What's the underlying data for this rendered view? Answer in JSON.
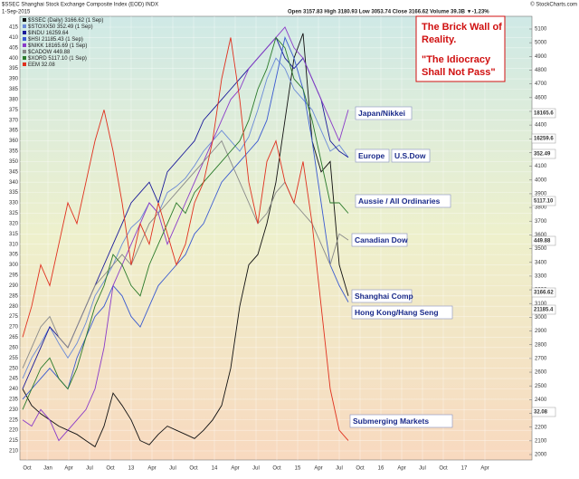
{
  "chart_data": {
    "type": "line",
    "title": "$SSEC Shanghai Stock Exchange Composite Index (EOD) INDX",
    "date": "1-Sep-2015",
    "quote": "Open 3157.83  High 3180.93  Low 3053.74  Close 3166.62  Volume 39.3B  ▼-1.23%",
    "source": "© StockCharts.com",
    "legend": [
      "$SSEC (Daily) 3166.62 (1 Sep)",
      "$STOXX50 352.49 (1 Sep)",
      "$INDU 16259.64",
      "$HSI 21185.43 (1 Sep)",
      "$NIKK 18165.69 (1 Sep)",
      "$CADOW 449.88",
      "$XORD 5117.10 (1 Sep)",
      "EEM 32.08"
    ],
    "series": [
      {
        "name": "$SSEC",
        "color": "#111111",
        "values": [
          240,
          232,
          228,
          225,
          222,
          220,
          218,
          215,
          212,
          222,
          238,
          232,
          225,
          215,
          213,
          218,
          222,
          220,
          218,
          216,
          220,
          225,
          232,
          250,
          280,
          300,
          305,
          320,
          340,
          370,
          400,
          412,
          360,
          345,
          350,
          300,
          285
        ]
      },
      {
        "name": "$STOXX50",
        "color": "#6a8ad8",
        "values": [
          245,
          255,
          262,
          270,
          262,
          255,
          262,
          272,
          285,
          292,
          300,
          310,
          318,
          322,
          330,
          325,
          335,
          338,
          342,
          348,
          355,
          360,
          365,
          360,
          355,
          362,
          375,
          390,
          400,
          395,
          385,
          380,
          375,
          365,
          355,
          358,
          352
        ]
      },
      {
        "name": "$INDU",
        "color": "#1a1a9a",
        "values": [
          240,
          250,
          260,
          270,
          265,
          260,
          270,
          280,
          290,
          300,
          310,
          320,
          330,
          335,
          340,
          330,
          345,
          350,
          355,
          360,
          370,
          375,
          380,
          385,
          390,
          395,
          400,
          405,
          410,
          400,
          395,
          400,
          390,
          380,
          360,
          355,
          352
        ]
      },
      {
        "name": "$HSI",
        "color": "#3a5ad0",
        "values": [
          235,
          240,
          245,
          250,
          245,
          240,
          255,
          265,
          275,
          280,
          290,
          285,
          275,
          270,
          280,
          290,
          295,
          300,
          305,
          315,
          320,
          330,
          340,
          345,
          350,
          355,
          360,
          370,
          390,
          410,
          400,
          385,
          360,
          330,
          300,
          290,
          282
        ]
      },
      {
        "name": "$NIKK",
        "color": "#8a3ac8",
        "values": [
          225,
          222,
          230,
          225,
          215,
          220,
          225,
          230,
          240,
          260,
          290,
          300,
          310,
          320,
          330,
          325,
          310,
          320,
          330,
          340,
          350,
          360,
          370,
          380,
          385,
          395,
          400,
          405,
          410,
          415,
          405,
          400,
          390,
          380,
          370,
          360,
          375
        ]
      },
      {
        "name": "$CADOW",
        "color": "#888888",
        "values": [
          250,
          260,
          270,
          275,
          265,
          260,
          270,
          280,
          290,
          295,
          300,
          305,
          300,
          310,
          320,
          325,
          330,
          335,
          340,
          345,
          350,
          355,
          360,
          350,
          340,
          330,
          320,
          325,
          335,
          340,
          330,
          325,
          320,
          310,
          300,
          315,
          312
        ]
      },
      {
        "name": "$XORD",
        "color": "#2a7a2a",
        "values": [
          230,
          240,
          250,
          255,
          245,
          240,
          250,
          265,
          280,
          290,
          305,
          300,
          290,
          285,
          300,
          310,
          320,
          330,
          325,
          335,
          340,
          345,
          350,
          355,
          360,
          370,
          385,
          395,
          410,
          405,
          390,
          385,
          370,
          350,
          330,
          330,
          325
        ]
      },
      {
        "name": "EEM",
        "color": "#e0301e",
        "values": [
          265,
          280,
          300,
          290,
          310,
          330,
          320,
          340,
          360,
          375,
          355,
          330,
          300,
          320,
          310,
          330,
          315,
          300,
          310,
          330,
          340,
          360,
          390,
          410,
          380,
          340,
          320,
          350,
          360,
          340,
          330,
          350,
          320,
          280,
          240,
          220,
          215
        ]
      }
    ],
    "x_labels": [
      "Oct",
      "Jan",
      "Apr",
      "Jul",
      "Oct",
      "13",
      "Apr",
      "Jul",
      "Oct",
      "14",
      "Apr",
      "Jul",
      "Oct",
      "15",
      "Apr",
      "Jul",
      "Oct",
      "16",
      "Apr",
      "Jul",
      "Oct",
      "17",
      "Apr"
    ],
    "ylim": [
      205,
      418
    ],
    "yticks": [
      210,
      215,
      220,
      225,
      230,
      235,
      240,
      245,
      250,
      255,
      260,
      265,
      270,
      275,
      280,
      285,
      290,
      295,
      300,
      305,
      310,
      315,
      320,
      325,
      330,
      335,
      340,
      345,
      350,
      355,
      360,
      365,
      370,
      375,
      380,
      385,
      390,
      395,
      400,
      405,
      410,
      415
    ],
    "y2lim": [
      2000,
      5100
    ],
    "y2ticks": [
      2000,
      2100,
      2200,
      2300,
      2400,
      2500,
      2600,
      2700,
      2800,
      2900,
      3000,
      3100,
      3200,
      3300,
      3400,
      3500,
      3600,
      3700,
      3800,
      3900,
      4000,
      4100,
      4200,
      4300,
      4400,
      4500,
      4600,
      4700,
      4800,
      4900,
      5000,
      5100
    ],
    "grid": true,
    "value_tags": [
      "18165.6",
      "16259.6",
      "352.49",
      "5117.10",
      "449.88",
      "3166.62",
      "21185.4",
      "32.08"
    ],
    "callouts": [
      "Japan/Nikkei",
      "Europe",
      "U.S.Dow",
      "Aussie / All Ordinaries",
      "Canadian Dow",
      "Shanghai Comp",
      "Hong Kong/Hang Seng",
      "Submerging Markets"
    ],
    "note": [
      "The Brick Wall of",
      "Reality.",
      "\"The Idiocracy",
      "Shall Not Pass\""
    ]
  }
}
